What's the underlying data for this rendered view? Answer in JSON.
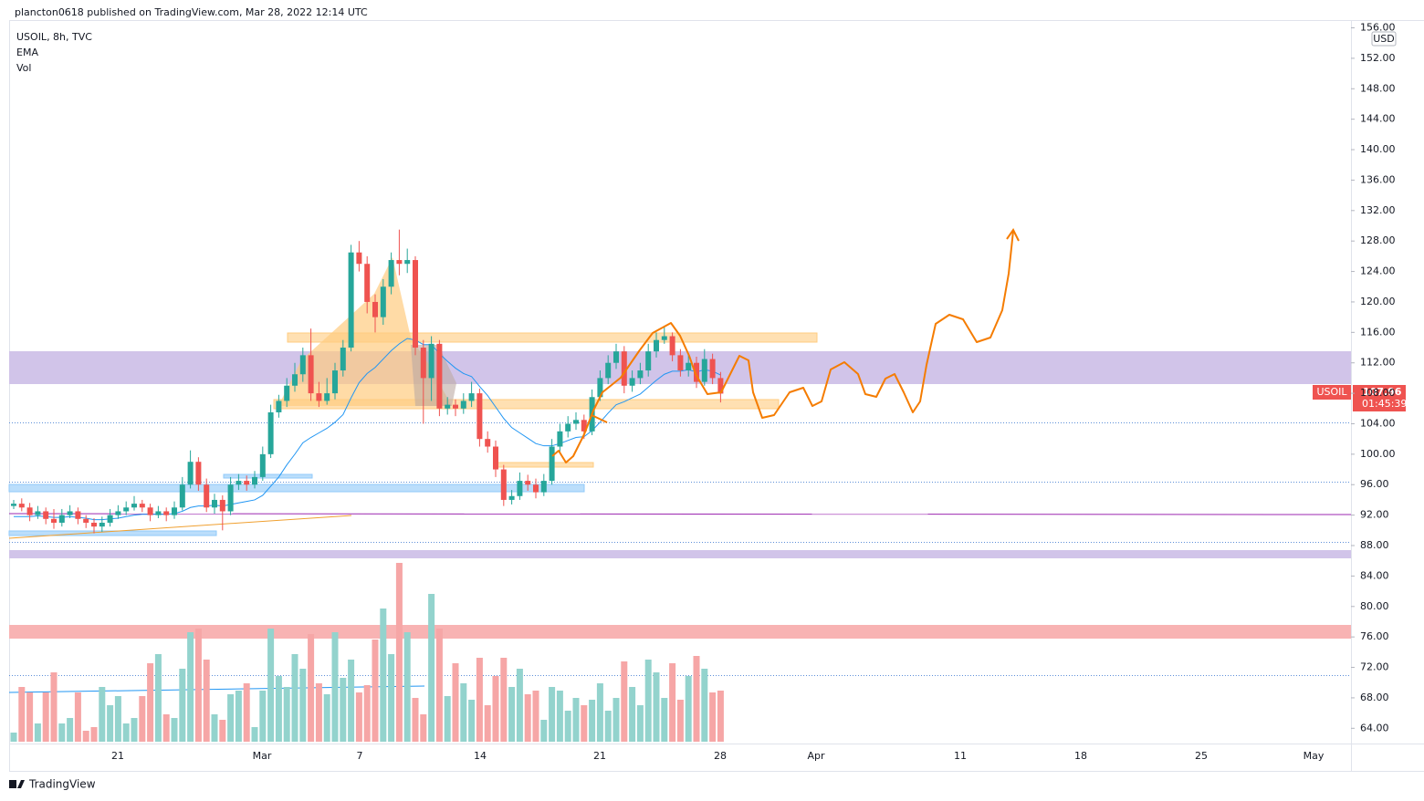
{
  "header": {
    "text": "plancton0618 published on TradingView.com, Mar 28, 2022 12:14 UTC"
  },
  "legend": {
    "symbol": "USOIL, 8h, TVC",
    "ema": "EMA",
    "vol": "Vol"
  },
  "currency": "USD",
  "price_tag": {
    "symbol": "USOIL",
    "price": "107.96",
    "countdown": "01:45:39"
  },
  "footer": {
    "brand": "TradingView"
  },
  "chart_data": {
    "type": "candlestick",
    "up_color": "#26a69a",
    "down_color": "#ef5350",
    "ema_color": "#2196f3",
    "volume_up_color": "#93d3cd",
    "volume_down_color": "#f6a6a6",
    "ylim": [
      62,
      156.9
    ],
    "yticks": [
      {
        "value": 64,
        "label": "64.00"
      },
      {
        "value": 68,
        "label": "68.00"
      },
      {
        "value": 72,
        "label": "72.00"
      },
      {
        "value": 76,
        "label": "76.00"
      },
      {
        "value": 80,
        "label": "80.00"
      },
      {
        "value": 84,
        "label": "84.00"
      },
      {
        "value": 88,
        "label": "88.00"
      },
      {
        "value": 92,
        "label": "92.00"
      },
      {
        "value": 96,
        "label": "96.00"
      },
      {
        "value": 100,
        "label": "100.00"
      },
      {
        "value": 104,
        "label": "104.00"
      },
      {
        "value": 108,
        "label": "108.00"
      },
      {
        "value": 112,
        "label": "112.00"
      },
      {
        "value": 116,
        "label": "116.00"
      },
      {
        "value": 120,
        "label": "120.00"
      },
      {
        "value": 124,
        "label": "124.00"
      },
      {
        "value": 128,
        "label": "128.00"
      },
      {
        "value": 132,
        "label": "132.00"
      },
      {
        "value": 136,
        "label": "136.00"
      },
      {
        "value": 140,
        "label": "140.00"
      },
      {
        "value": 144,
        "label": "144.00"
      },
      {
        "value": 148,
        "label": "148.00"
      },
      {
        "value": 152,
        "label": "152.00"
      },
      {
        "value": 156,
        "label": "156.00"
      }
    ],
    "x_labels": [
      "21",
      "Mar",
      "7",
      "14",
      "21",
      "28",
      "Apr",
      "11",
      "18",
      "25",
      "May"
    ],
    "candles": [
      [
        93.2,
        94,
        92.8,
        93.5
      ],
      [
        93.5,
        94.2,
        92.5,
        93
      ],
      [
        93,
        93.6,
        91.2,
        92
      ],
      [
        92,
        93.2,
        91.5,
        92.5
      ],
      [
        92.5,
        93,
        90.8,
        91.5
      ],
      [
        91.5,
        92.8,
        90.2,
        91
      ],
      [
        91,
        92.8,
        90.5,
        92
      ],
      [
        92,
        93.3,
        91.6,
        92.5
      ],
      [
        92.5,
        93,
        90.8,
        91.5
      ],
      [
        91.5,
        92,
        90.3,
        91
      ],
      [
        91,
        91.6,
        89.6,
        90.5
      ],
      [
        90.5,
        91.8,
        89.8,
        91
      ],
      [
        91,
        92.8,
        90.5,
        92
      ],
      [
        92,
        93.3,
        91.5,
        92.5
      ],
      [
        92.5,
        93.8,
        92,
        93
      ],
      [
        93,
        94.5,
        92.6,
        93.5
      ],
      [
        93.5,
        94,
        92.4,
        93
      ],
      [
        93,
        93.5,
        91.2,
        92
      ],
      [
        92,
        93.2,
        91.6,
        92.5
      ],
      [
        92.5,
        93,
        91.2,
        92
      ],
      [
        92,
        93.8,
        91.5,
        93
      ],
      [
        93,
        97,
        92.6,
        96
      ],
      [
        96,
        100.5,
        95.5,
        99
      ],
      [
        99,
        99.6,
        95.2,
        96
      ],
      [
        96,
        96.8,
        92.4,
        93
      ],
      [
        93,
        94.8,
        92.2,
        94
      ],
      [
        94,
        94.6,
        90,
        92.5
      ],
      [
        92.5,
        97,
        92,
        96
      ],
      [
        96,
        97.4,
        95.3,
        96.5
      ],
      [
        96.5,
        97.2,
        95.2,
        96
      ],
      [
        96,
        97.8,
        95.5,
        97
      ],
      [
        97,
        101,
        96.5,
        100
      ],
      [
        100,
        106.5,
        99.5,
        105.5
      ],
      [
        105.5,
        107.8,
        104.8,
        107
      ],
      [
        107,
        110,
        106.2,
        109
      ],
      [
        109,
        112,
        108.2,
        110.5
      ],
      [
        110.5,
        114,
        109.5,
        113
      ],
      [
        113,
        116.5,
        107,
        108
      ],
      [
        108,
        109.5,
        106.2,
        107
      ],
      [
        107,
        110,
        106.5,
        108
      ],
      [
        108,
        112,
        107.2,
        111
      ],
      [
        111,
        115,
        110.2,
        114
      ],
      [
        114,
        127.5,
        113.5,
        126.5
      ],
      [
        126.5,
        128,
        124,
        125
      ],
      [
        125,
        126,
        118.5,
        120
      ],
      [
        120,
        121,
        116,
        118
      ],
      [
        118,
        123,
        117,
        122
      ],
      [
        122,
        126.5,
        121,
        125.5
      ],
      [
        125.5,
        129.5,
        123.5,
        125
      ],
      [
        125,
        127,
        123.8,
        125.5
      ],
      [
        125.5,
        126,
        113,
        114
      ],
      [
        114,
        115,
        104,
        110
      ],
      [
        110,
        115.5,
        107,
        114.5
      ],
      [
        114.5,
        115,
        105,
        106
      ],
      [
        106,
        107.5,
        105.2,
        106.5
      ],
      [
        106.5,
        107.2,
        105,
        106
      ],
      [
        106,
        108,
        105.3,
        107
      ],
      [
        107,
        109.5,
        106.2,
        108
      ],
      [
        108,
        108.6,
        101,
        102
      ],
      [
        102,
        103,
        100.2,
        101
      ],
      [
        101,
        101.8,
        97,
        98
      ],
      [
        98,
        98.6,
        93.2,
        94
      ],
      [
        94,
        95.3,
        93.4,
        94.5
      ],
      [
        94.5,
        97.6,
        94,
        96.5
      ],
      [
        96.5,
        97.3,
        95.2,
        96
      ],
      [
        96,
        96.8,
        94.2,
        95
      ],
      [
        95,
        97.4,
        94.5,
        96.5
      ],
      [
        96.5,
        102,
        96,
        101
      ],
      [
        101,
        104,
        100.3,
        103
      ],
      [
        103,
        105,
        102.2,
        104
      ],
      [
        104,
        105.5,
        103.2,
        104.5
      ],
      [
        104.5,
        105.2,
        102,
        103
      ],
      [
        103,
        108.5,
        102.5,
        107.5
      ],
      [
        107.5,
        111,
        107,
        110
      ],
      [
        110,
        113,
        109.2,
        112
      ],
      [
        112,
        114.5,
        111.2,
        113.5
      ],
      [
        113.5,
        114.2,
        108,
        109
      ],
      [
        109,
        111,
        108.2,
        110
      ],
      [
        110,
        112,
        109.2,
        111
      ],
      [
        111,
        114.5,
        110.2,
        113.5
      ],
      [
        113.5,
        116,
        112.7,
        115
      ],
      [
        115,
        116.7,
        114.5,
        115.5
      ],
      [
        115.5,
        116,
        112.2,
        113
      ],
      [
        113,
        113.8,
        110.2,
        111
      ],
      [
        111,
        113,
        110.2,
        112
      ],
      [
        112,
        112.8,
        108.7,
        109.5
      ],
      [
        109.5,
        113.8,
        109,
        112.5
      ],
      [
        112.5,
        113.2,
        109.2,
        110
      ],
      [
        110,
        110.8,
        106.8,
        107.96
      ]
    ],
    "ema": [
      91.8,
      91.8,
      91.8,
      91.9,
      91.8,
      91.7,
      91.7,
      91.8,
      91.7,
      91.6,
      91.4,
      91.4,
      91.5,
      91.6,
      91.8,
      92,
      92.1,
      92.1,
      92.1,
      92.1,
      92.2,
      92.5,
      93,
      93.2,
      93.2,
      93.3,
      93.2,
      93.4,
      93.6,
      93.8,
      94,
      94.6,
      95.8,
      97,
      98.6,
      100,
      101.5,
      102.2,
      102.8,
      103.4,
      104.2,
      105.2,
      107.4,
      109.4,
      110.6,
      111.4,
      112.5,
      113.6,
      114.5,
      115.2,
      115,
      114.4,
      114.4,
      113.2,
      112.2,
      111.3,
      110.6,
      110.2,
      108.9,
      107.7,
      106.2,
      104.7,
      103.5,
      102.8,
      102.1,
      101.4,
      101.1,
      101.1,
      101.4,
      101.8,
      102.2,
      102.3,
      103.1,
      104.2,
      105.4,
      106.5,
      106.9,
      107.4,
      107.9,
      108.8,
      109.7,
      110.5,
      110.9,
      110.9,
      111.1,
      110.8,
      111.1,
      110.9,
      110.4
    ],
    "volume": [
      5,
      30,
      27,
      10,
      27,
      38,
      10,
      13,
      27,
      6,
      8,
      30,
      20,
      25,
      10,
      13,
      25,
      43,
      48,
      15,
      13,
      40,
      60,
      62,
      45,
      15,
      12,
      26,
      28,
      32,
      8,
      28,
      62,
      36,
      30,
      48,
      40,
      59,
      32,
      26,
      60,
      35,
      45,
      27,
      31,
      56,
      73,
      48,
      98,
      60,
      24,
      15,
      81,
      62,
      25,
      43,
      32,
      23,
      46,
      20,
      36,
      46,
      30,
      40,
      26,
      28,
      12,
      30,
      28,
      17,
      24,
      20,
      23,
      32,
      17,
      24,
      44,
      30,
      20,
      45,
      38,
      24,
      43,
      23,
      36,
      47,
      40,
      27,
      28
    ]
  }
}
